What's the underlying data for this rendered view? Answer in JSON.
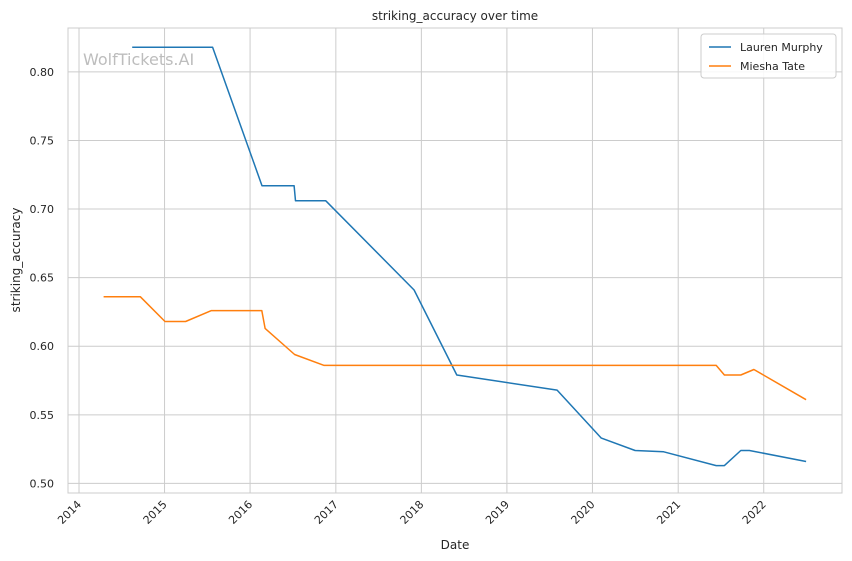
{
  "chart_data": {
    "type": "line",
    "title": "striking_accuracy over time",
    "xlabel": "Date",
    "ylabel": "striking_accuracy",
    "watermark": "WolfTickets.AI",
    "xlim": [
      "2013-11-15",
      "2022-12-01"
    ],
    "ylim": [
      0.493,
      0.832
    ],
    "x_ticks": [
      "2014",
      "2015",
      "2016",
      "2017",
      "2018",
      "2019",
      "2020",
      "2021",
      "2022"
    ],
    "y_ticks": [
      "0.50",
      "0.55",
      "0.60",
      "0.65",
      "0.70",
      "0.75",
      "0.80"
    ],
    "grid": true,
    "legend": {
      "position": "top-right"
    },
    "colors": {
      "Lauren Murphy": "#1f77b4",
      "Miesha Tate": "#ff7f0e",
      "grid": "#cccccc"
    },
    "series": [
      {
        "name": "Lauren Murphy",
        "points": [
          [
            "2014-08-16",
            0.818
          ],
          [
            "2015-07-25",
            0.818
          ],
          [
            "2016-02-21",
            0.717
          ],
          [
            "2016-07-07",
            0.717
          ],
          [
            "2016-07-13",
            0.706
          ],
          [
            "2016-11-19",
            0.706
          ],
          [
            "2017-12-01",
            0.641
          ],
          [
            "2018-06-01",
            0.579
          ],
          [
            "2019-08-03",
            0.568
          ],
          [
            "2020-02-08",
            0.533
          ],
          [
            "2020-07-01",
            0.524
          ],
          [
            "2020-10-31",
            0.523
          ],
          [
            "2021-06-12",
            0.513
          ],
          [
            "2021-07-17",
            0.513
          ],
          [
            "2021-09-25",
            0.524
          ],
          [
            "2021-11-01",
            0.524
          ],
          [
            "2022-07-01",
            0.516
          ]
        ]
      },
      {
        "name": "Miesha Tate",
        "points": [
          [
            "2014-04-16",
            0.636
          ],
          [
            "2014-09-20",
            0.636
          ],
          [
            "2015-01-03",
            0.618
          ],
          [
            "2015-04-01",
            0.618
          ],
          [
            "2015-07-20",
            0.626
          ],
          [
            "2016-02-01",
            0.626
          ],
          [
            "2016-02-20",
            0.626
          ],
          [
            "2016-03-05",
            0.613
          ],
          [
            "2016-07-09",
            0.594
          ],
          [
            "2016-11-12",
            0.586
          ],
          [
            "2021-06-12",
            0.586
          ],
          [
            "2021-07-17",
            0.579
          ],
          [
            "2021-09-25",
            0.579
          ],
          [
            "2021-11-20",
            0.583
          ],
          [
            "2022-07-01",
            0.561
          ]
        ]
      }
    ]
  }
}
